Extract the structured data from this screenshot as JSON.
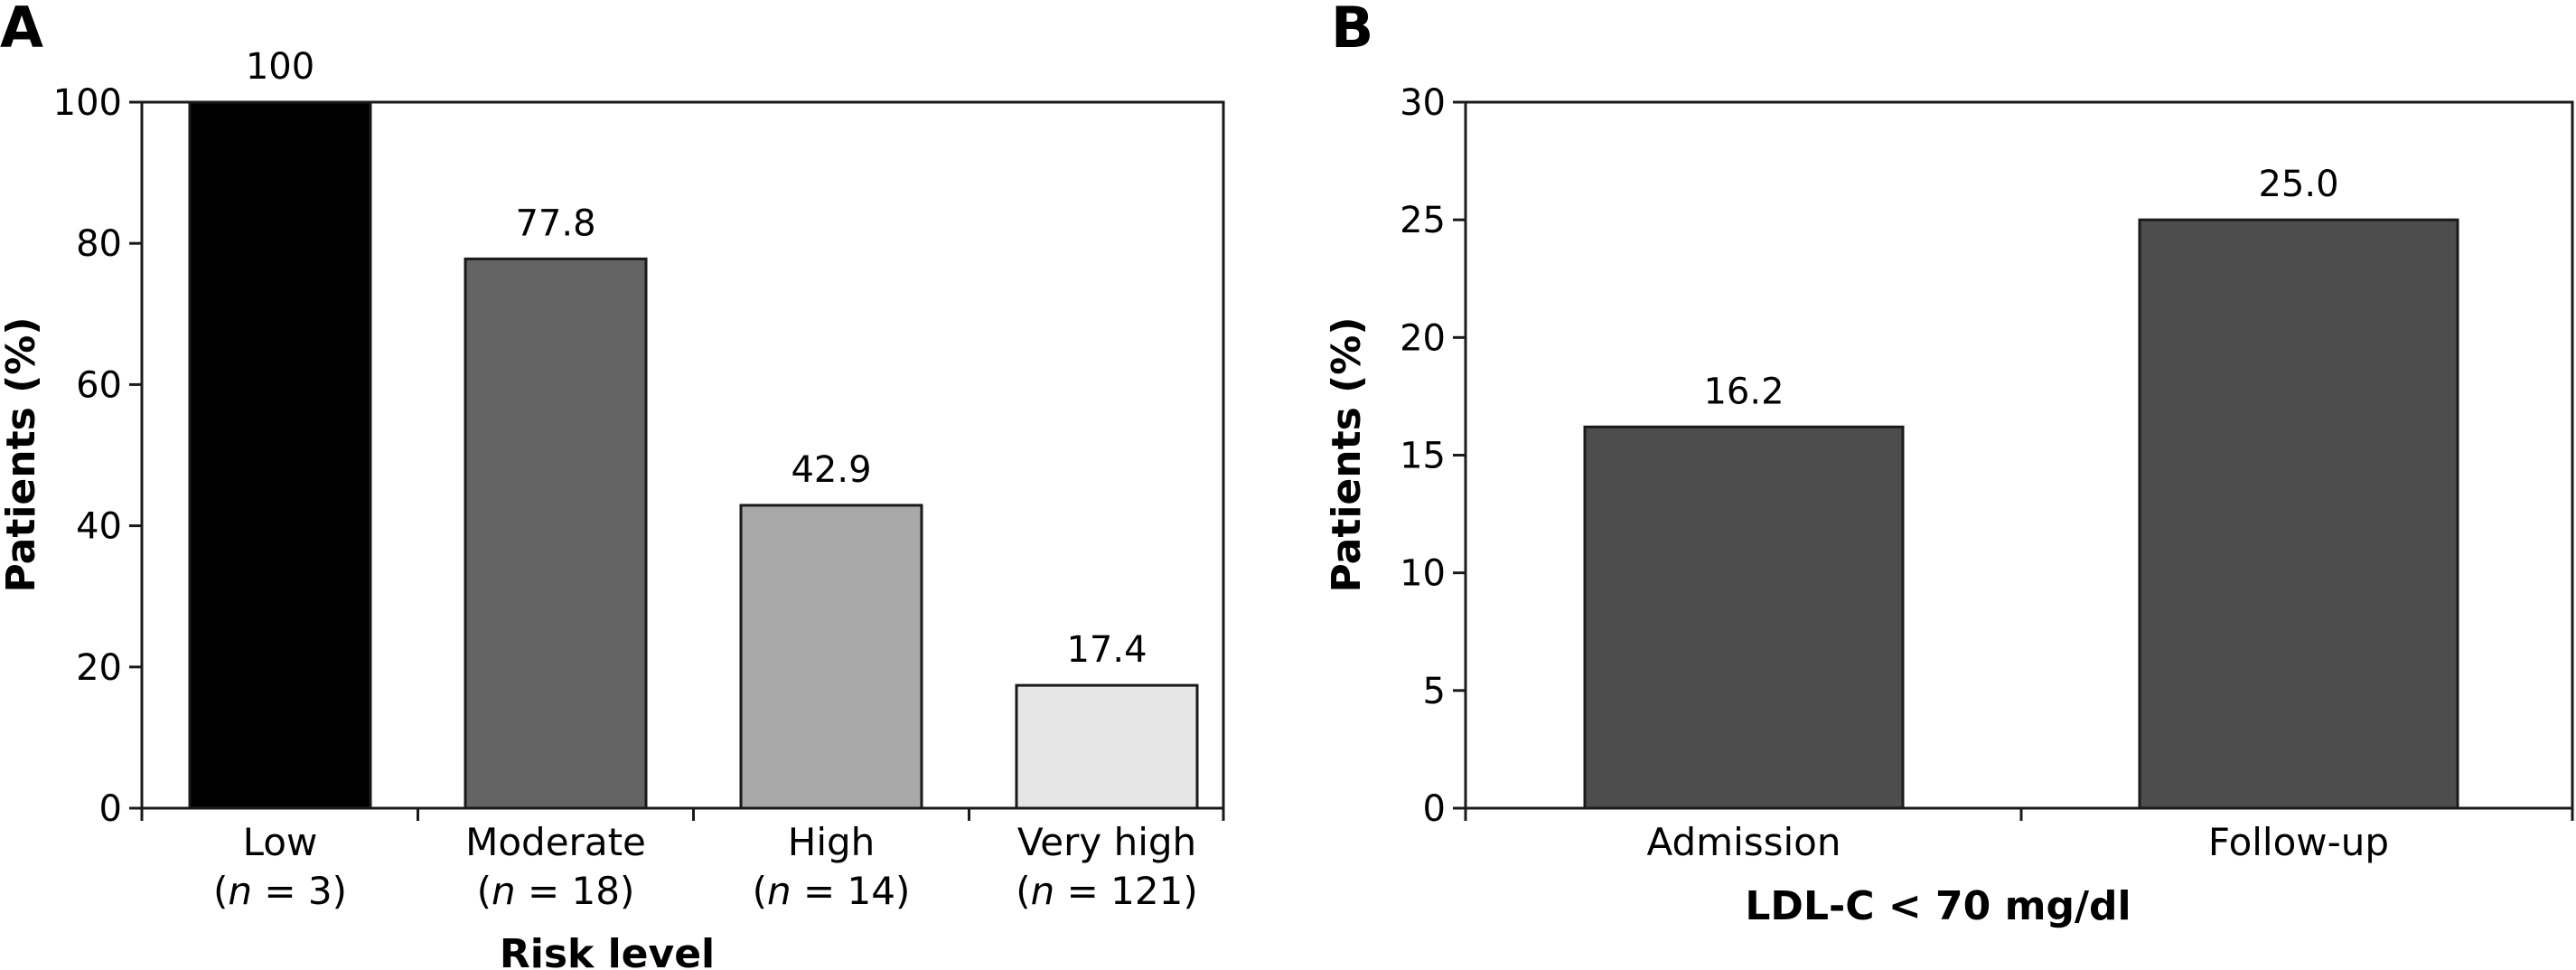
{
  "chart_data": [
    {
      "type": "bar",
      "panel": "A",
      "title": "",
      "xlabel": "Risk level",
      "ylabel": "Patients (%)",
      "ylim": [
        0,
        100
      ],
      "yticks": [
        0,
        20,
        40,
        60,
        80,
        100
      ],
      "categories": [
        "Low",
        "Moderate",
        "High",
        "Very high"
      ],
      "category_notes": [
        "(n = 3)",
        "(n = 18)",
        "(n = 14)",
        "(n = 121)"
      ],
      "values": [
        100,
        77.8,
        42.9,
        17.4
      ],
      "data_labels": [
        "100",
        "77.8",
        "42.9",
        "17.4"
      ],
      "colors": [
        "#000000",
        "#636363",
        "#a8a8a8",
        "#e6e6e6"
      ],
      "grid": false
    },
    {
      "type": "bar",
      "panel": "B",
      "title": "",
      "xlabel": "LDL-C < 70 mg/dl",
      "ylabel": "Patients (%)",
      "ylim": [
        0,
        30
      ],
      "yticks": [
        0,
        5,
        10,
        15,
        20,
        25,
        30
      ],
      "categories": [
        "Admission",
        "Follow-up"
      ],
      "category_notes": [
        "",
        ""
      ],
      "values": [
        16.2,
        25.0
      ],
      "data_labels": [
        "16.2",
        "25.0"
      ],
      "colors": [
        "#4d4d4d",
        "#4d4d4d"
      ],
      "grid": false
    }
  ]
}
